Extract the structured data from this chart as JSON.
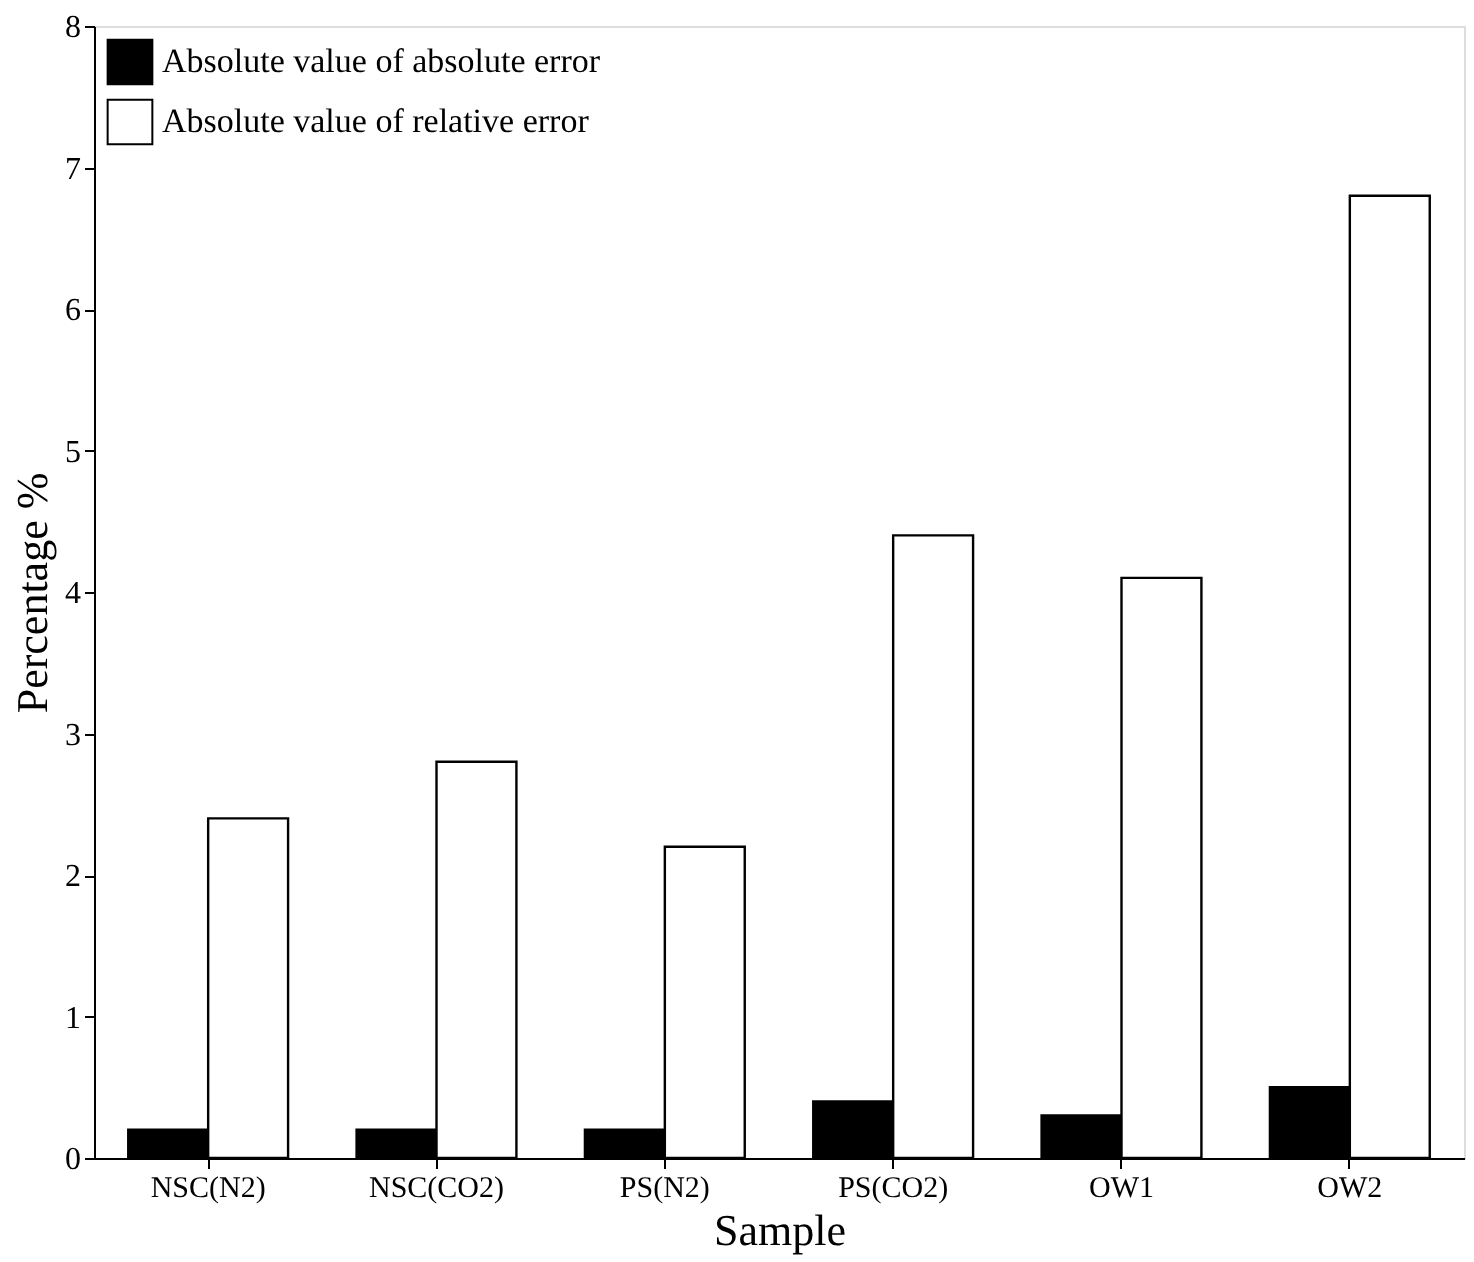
{
  "chart_data": {
    "type": "bar",
    "xlabel": "Sample",
    "ylabel": "Percentage %",
    "categories": [
      "NSC(N2)",
      "NSC(CO2)",
      "PS(N2)",
      "PS(CO2)",
      "OW1",
      "OW2"
    ],
    "series": [
      {
        "name": "Absolute value of absolute error",
        "color": "#000000",
        "values": [
          0.2,
          0.2,
          0.2,
          0.4,
          0.3,
          0.5
        ]
      },
      {
        "name": "Absolute value of relative error",
        "color": "#ffffff",
        "values": [
          2.4,
          2.8,
          2.2,
          4.4,
          4.1,
          6.8
        ]
      }
    ],
    "ylim": [
      0,
      8
    ],
    "yticks": [
      0,
      1,
      2,
      3,
      4,
      5,
      6,
      7,
      8
    ],
    "grid": false,
    "legend": "top left"
  }
}
